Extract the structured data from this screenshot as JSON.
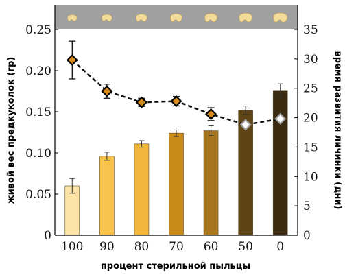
{
  "chart_data": {
    "type": "bar",
    "categories": [
      "100",
      "90",
      "80",
      "70",
      "60",
      "50",
      "0"
    ],
    "xlabel": "процент стерильной пыльцы",
    "ylabel": "живой вес предкуколок  (гр)",
    "y2label": "время развития личинки (дни)",
    "ylim": [
      0,
      0.25
    ],
    "y2lim": [
      0,
      35
    ],
    "yticks": [
      "0",
      "0.05",
      "0.10",
      "0.15",
      "0.20",
      "0.25"
    ],
    "y2ticks": [
      "0",
      "5",
      "10",
      "15",
      "20",
      "25",
      "30",
      "35"
    ],
    "bar_series": {
      "axis": "left",
      "values": [
        0.06,
        0.096,
        0.111,
        0.124,
        0.127,
        0.152,
        0.176
      ],
      "errors": [
        0.009,
        0.005,
        0.004,
        0.004,
        0.006,
        0.005,
        0.008
      ],
      "colors": [
        "#fde3a6",
        "#f9c24a",
        "#f2b63c",
        "#c98a1a",
        "#a6771e",
        "#5e4416",
        "#3a2a10"
      ]
    },
    "line_series": {
      "axis": "right",
      "style": "dashed",
      "values": [
        29.8,
        24.5,
        22.6,
        22.8,
        20.6,
        18.8,
        19.8
      ],
      "errors": [
        3.2,
        1.2,
        0.7,
        0.8,
        1.1,
        0,
        0
      ],
      "marker_fill": [
        "#d88a18",
        "#d88a18",
        "#d88a18",
        "#d88a18",
        "#d88a18",
        "#ffffff",
        "#ffffff"
      ],
      "marker_edge": [
        "#000000",
        "#000000",
        "#000000",
        "#000000",
        "#000000",
        "#a0a0a0",
        "#a0a0a0"
      ]
    },
    "header_strip": {
      "background": "#a0a0a0",
      "item_count": 7,
      "item_color": "#f3dc9a"
    },
    "grid": false
  }
}
